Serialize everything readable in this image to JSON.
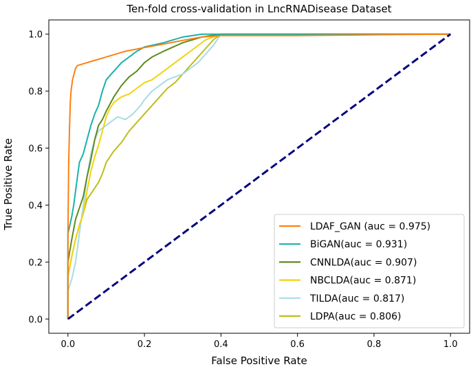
{
  "chart_data": {
    "type": "line",
    "title": "Ten-fold cross-validation in LncRNADisease Dataset",
    "xlabel": "False Positive Rate",
    "ylabel": "True Positive Rate",
    "xlim": [
      -0.05,
      1.05
    ],
    "ylim": [
      -0.05,
      1.05
    ],
    "xticks": [
      0.0,
      0.2,
      0.4,
      0.6,
      0.8,
      1.0
    ],
    "yticks": [
      0.0,
      0.2,
      0.4,
      0.6,
      0.8,
      1.0
    ],
    "xtick_labels": [
      "0.0",
      "0.2",
      "0.4",
      "0.6",
      "0.8",
      "1.0"
    ],
    "ytick_labels": [
      "0.0",
      "0.2",
      "0.4",
      "0.6",
      "0.8",
      "1.0"
    ],
    "grid": false,
    "legend_position": "lower-right",
    "diagonal": {
      "color": "#000080",
      "style": "dashed",
      "x": [
        0,
        1
      ],
      "y": [
        0,
        1
      ]
    },
    "series": [
      {
        "name": "LDAF_GAN",
        "label": "LDAF_GAN (auc = 0.975)",
        "auc": 0.975,
        "color": "#ff7f0e",
        "x": [
          0,
          0,
          0.002,
          0.004,
          0.006,
          0.008,
          0.012,
          0.016,
          0.02,
          0.025,
          0.05,
          0.1,
          0.15,
          0.2,
          0.25,
          0.3,
          0.35,
          0.4,
          0.6,
          0.8,
          1.0
        ],
        "y": [
          0,
          0.3,
          0.55,
          0.66,
          0.76,
          0.8,
          0.84,
          0.86,
          0.88,
          0.89,
          0.9,
          0.92,
          0.94,
          0.953,
          0.965,
          0.978,
          0.99,
          0.995,
          0.995,
          0.998,
          1.0
        ]
      },
      {
        "name": "BiGAN",
        "label": "BiGAN(auc = 0.931)",
        "auc": 0.931,
        "color": "#17b2a8",
        "x": [
          0,
          0,
          0.005,
          0.01,
          0.015,
          0.02,
          0.025,
          0.03,
          0.04,
          0.05,
          0.06,
          0.07,
          0.08,
          0.09,
          0.1,
          0.12,
          0.14,
          0.16,
          0.18,
          0.2,
          0.25,
          0.3,
          0.35,
          0.4,
          0.6,
          0.8,
          1.0
        ],
        "y": [
          0,
          0.3,
          0.33,
          0.36,
          0.4,
          0.45,
          0.5,
          0.55,
          0.58,
          0.63,
          0.68,
          0.72,
          0.75,
          0.8,
          0.84,
          0.87,
          0.9,
          0.92,
          0.94,
          0.955,
          0.97,
          0.99,
          1.0,
          1.0,
          1.0,
          1.0,
          1.0
        ]
      },
      {
        "name": "CNNLDA",
        "label": "CNNLDA(auc = 0.907)",
        "auc": 0.907,
        "color": "#5c8a1e",
        "x": [
          0,
          0,
          0.01,
          0.02,
          0.03,
          0.04,
          0.05,
          0.06,
          0.07,
          0.08,
          0.09,
          0.1,
          0.12,
          0.14,
          0.16,
          0.18,
          0.2,
          0.22,
          0.25,
          0.3,
          0.35,
          0.4,
          0.6,
          0.8,
          1.0
        ],
        "y": [
          0,
          0.2,
          0.28,
          0.35,
          0.39,
          0.43,
          0.5,
          0.56,
          0.63,
          0.68,
          0.7,
          0.73,
          0.78,
          0.82,
          0.85,
          0.87,
          0.9,
          0.92,
          0.94,
          0.97,
          0.99,
          1.0,
          1.0,
          1.0,
          1.0
        ]
      },
      {
        "name": "NBCLDA",
        "label": "NBCLDA(auc = 0.871)",
        "auc": 0.871,
        "color": "#f2d20c",
        "x": [
          0,
          0,
          0.01,
          0.02,
          0.03,
          0.04,
          0.05,
          0.06,
          0.07,
          0.08,
          0.09,
          0.1,
          0.11,
          0.12,
          0.14,
          0.16,
          0.18,
          0.2,
          0.22,
          0.24,
          0.26,
          0.28,
          0.3,
          0.33,
          0.36,
          0.4,
          0.6,
          0.8,
          1.0
        ],
        "y": [
          0,
          0.15,
          0.22,
          0.28,
          0.33,
          0.37,
          0.45,
          0.52,
          0.57,
          0.61,
          0.66,
          0.71,
          0.74,
          0.76,
          0.78,
          0.79,
          0.81,
          0.83,
          0.84,
          0.86,
          0.88,
          0.9,
          0.92,
          0.95,
          0.98,
          1.0,
          1.0,
          1.0,
          1.0
        ]
      },
      {
        "name": "TILDA",
        "label": "TILDA(auc = 0.817)",
        "auc": 0.817,
        "color": "#a8dbe8",
        "x": [
          0,
          0,
          0.01,
          0.02,
          0.03,
          0.04,
          0.05,
          0.06,
          0.07,
          0.08,
          0.09,
          0.1,
          0.11,
          0.12,
          0.13,
          0.15,
          0.17,
          0.19,
          0.2,
          0.22,
          0.24,
          0.26,
          0.28,
          0.3,
          0.32,
          0.34,
          0.36,
          0.38,
          0.4,
          0.6,
          0.8,
          1.0
        ],
        "y": [
          0,
          0.1,
          0.14,
          0.2,
          0.3,
          0.4,
          0.5,
          0.58,
          0.63,
          0.66,
          0.67,
          0.68,
          0.69,
          0.7,
          0.71,
          0.7,
          0.72,
          0.75,
          0.77,
          0.8,
          0.82,
          0.84,
          0.85,
          0.86,
          0.88,
          0.9,
          0.93,
          0.96,
          1.0,
          1.0,
          1.0,
          1.0
        ]
      },
      {
        "name": "LDPA",
        "label": "LDPA(auc = 0.806)",
        "auc": 0.806,
        "color": "#bdbd1a",
        "x": [
          0,
          0,
          0.01,
          0.02,
          0.03,
          0.04,
          0.05,
          0.06,
          0.07,
          0.08,
          0.09,
          0.1,
          0.12,
          0.14,
          0.16,
          0.18,
          0.2,
          0.22,
          0.24,
          0.26,
          0.28,
          0.3,
          0.32,
          0.34,
          0.36,
          0.38,
          0.4,
          0.6,
          0.8,
          1.0
        ],
        "y": [
          0,
          0.15,
          0.22,
          0.28,
          0.33,
          0.37,
          0.42,
          0.44,
          0.46,
          0.48,
          0.51,
          0.55,
          0.59,
          0.62,
          0.66,
          0.69,
          0.72,
          0.75,
          0.78,
          0.81,
          0.83,
          0.86,
          0.89,
          0.92,
          0.95,
          0.98,
          1.0,
          1.0,
          1.0,
          1.0
        ]
      }
    ]
  }
}
